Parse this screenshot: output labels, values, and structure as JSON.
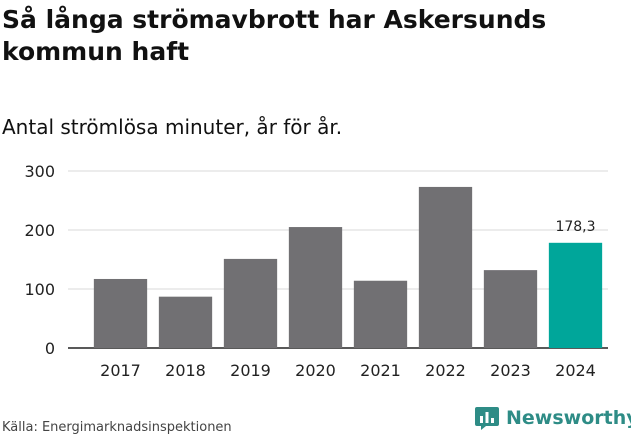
{
  "title": "Så långa strömavbrott har Askersunds kommun haft",
  "subtitle": "Antal strömlösa minuter, år för år.",
  "source": "Källa: Energimarknadsinspektionen",
  "brand": "Newsworthy",
  "brand_icon": "newsworthy-chart-logo-icon",
  "colors": {
    "bar": "#717073",
    "highlight": "#00a69a",
    "grid": "#d9d9d9",
    "axis": "#222222",
    "brand": "#2e8c86"
  },
  "chart_data": {
    "type": "bar",
    "categories": [
      "2017",
      "2018",
      "2019",
      "2020",
      "2021",
      "2022",
      "2023",
      "2024"
    ],
    "values": [
      117,
      87,
      151,
      205,
      114,
      273,
      132,
      178.3
    ],
    "highlight_index": 7,
    "data_labels": [
      {
        "index": 7,
        "text": "178,3"
      }
    ],
    "ylim": [
      0,
      300
    ],
    "yticks": [
      0,
      100,
      200,
      300
    ],
    "grid": true,
    "legend": "none",
    "xlabel": "",
    "ylabel": ""
  }
}
